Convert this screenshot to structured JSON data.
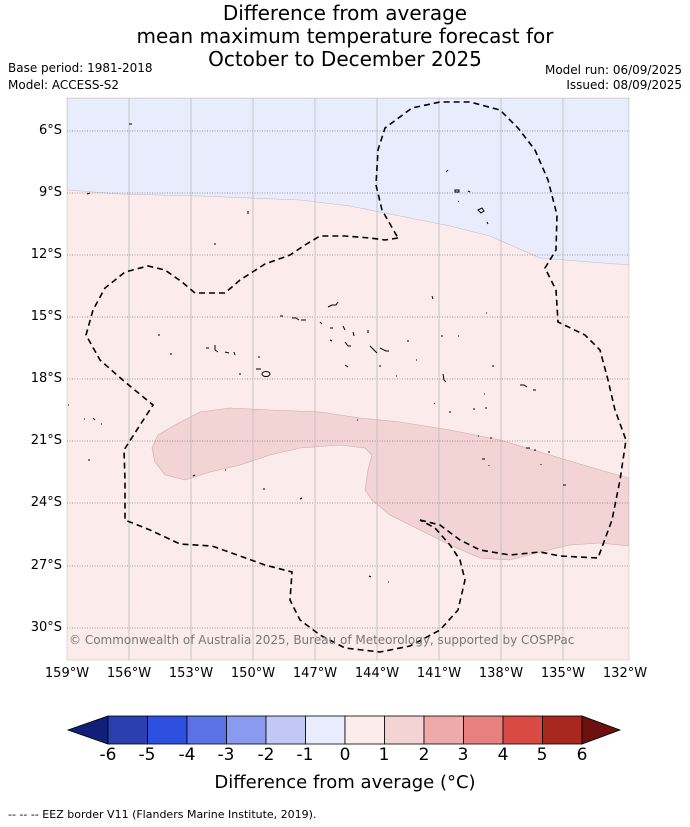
{
  "header": {
    "title_line1": "Difference from average",
    "title_line2": "mean maximum temperature forecast for",
    "title_line3": "October to December 2025",
    "base_period": "Base period: 1981-2018",
    "model": "Model: ACCESS-S2",
    "model_run": "Model run: 06/09/2025",
    "issued": "Issued: 08/09/2025"
  },
  "map": {
    "lat_labels": [
      "6°S",
      "9°S",
      "12°S",
      "15°S",
      "18°S",
      "21°S",
      "24°S",
      "27°S",
      "30°S"
    ],
    "lon_labels": [
      "159°W",
      "156°W",
      "153°W",
      "150°W",
      "147°W",
      "144°W",
      "141°W",
      "138°W",
      "135°W",
      "132°W"
    ],
    "copyright": "© Commonwealth of Australia 2025, Bureau of Meteorology, supported by COSPPac",
    "colors": {
      "cool_light": "#e8ecfc",
      "warm_light": "#fbeceb",
      "warm_medium": "#f3d4d4"
    }
  },
  "colorbar": {
    "ticks": [
      "-6",
      "-5",
      "-4",
      "-3",
      "-2",
      "-1",
      "0",
      "1",
      "2",
      "3",
      "4",
      "5",
      "6"
    ],
    "title": "Difference from average (°C)",
    "colors": [
      "#10207a",
      "#2a3fb0",
      "#2f4fe0",
      "#5a72e6",
      "#8a9aef",
      "#c2c8f5",
      "#e8ecfc",
      "#fcecec",
      "#f3d3d3",
      "#eeaaaa",
      "#e88080",
      "#d94a44",
      "#a8281f",
      "#6e1010"
    ]
  },
  "footer": {
    "eez_note": "--  --  -- EEZ border V11 (Flanders Marine Institute, 2019)."
  }
}
